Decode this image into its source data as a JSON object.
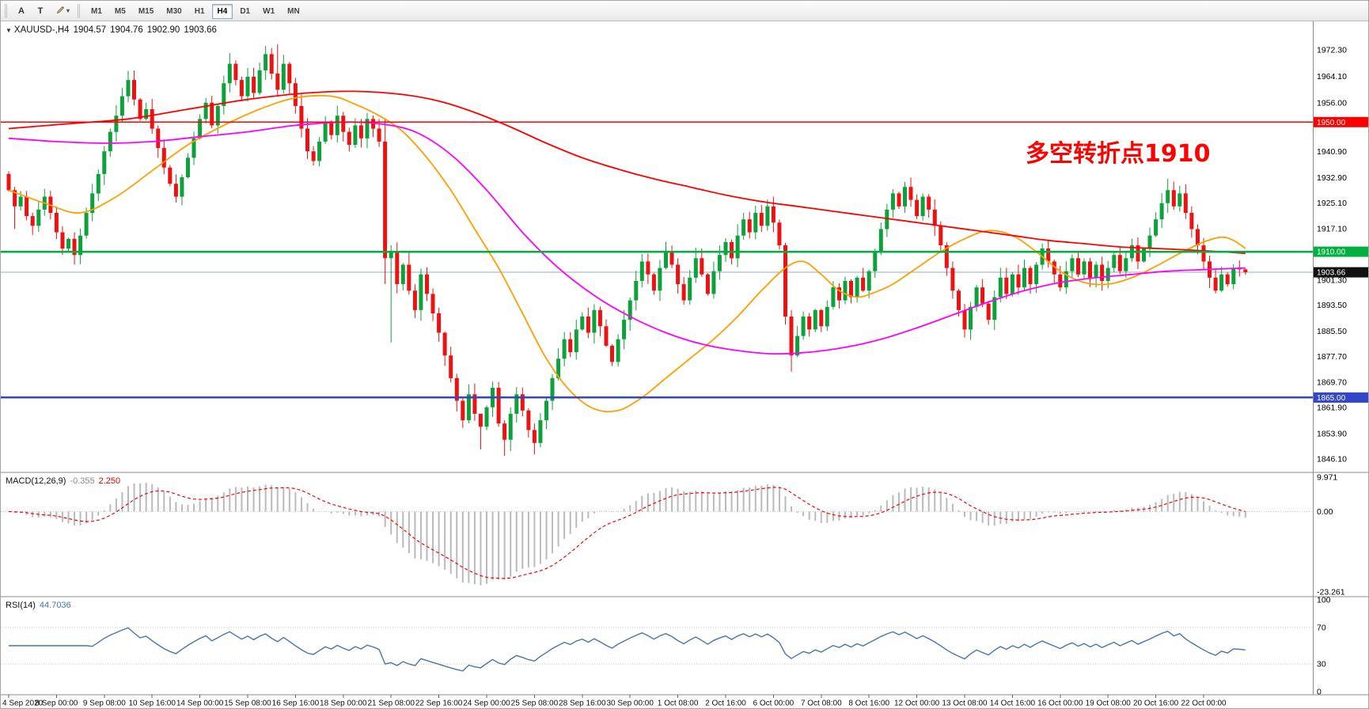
{
  "toolbar": {
    "tools": [
      {
        "label": "A"
      },
      {
        "label": "T"
      }
    ],
    "draw_caret": "▾",
    "timeframes": [
      {
        "label": "M1",
        "active": false
      },
      {
        "label": "M5",
        "active": false
      },
      {
        "label": "M15",
        "active": false
      },
      {
        "label": "M30",
        "active": false
      },
      {
        "label": "H1",
        "active": false
      },
      {
        "label": "H4",
        "active": true
      },
      {
        "label": "D1",
        "active": false
      },
      {
        "label": "W1",
        "active": false
      },
      {
        "label": "MN",
        "active": false
      }
    ]
  },
  "chart": {
    "symbol_line": {
      "arrow": "▼",
      "symbol": "XAUUSD-,H4",
      "open": "1904.57",
      "high": "1904.76",
      "low": "1902.90",
      "close": "1903.66"
    },
    "annotation": {
      "text": "多空转折点1910",
      "color": "#ff0000"
    },
    "price_range": {
      "min": 1841.9,
      "max": 1981.1
    },
    "y_ticks": [
      1972.3,
      1964.1,
      1956.0,
      1940.9,
      1932.9,
      1925.1,
      1917.1,
      1901.3,
      1893.5,
      1885.5,
      1877.7,
      1869.7,
      1861.9,
      1853.9,
      1846.1
    ],
    "hlines": [
      {
        "price": 1950.0,
        "label": "1950.00",
        "color": "#ff0000",
        "width": 1.6
      },
      {
        "price": 1910.0,
        "label": "1910.00",
        "color": "#00b140",
        "width": 2.6
      },
      {
        "price": 1865.0,
        "label": "1865.00",
        "color": "#3146c8",
        "width": 2.6
      }
    ],
    "price_line": {
      "price": 1903.66,
      "label": "1903.66",
      "line_color": "#9aa8bd",
      "badge_color": "#111111"
    },
    "colors": {
      "bull": "#0ca13a",
      "bear": "#ee1111"
    },
    "candles": {
      "first_open": 1934,
      "closes": [
        1929,
        1924,
        1927,
        1921,
        1918,
        1923,
        1927,
        1922,
        1916,
        1911,
        1914,
        1909,
        1915,
        1922,
        1928,
        1934,
        1941,
        1947,
        1952,
        1958,
        1963,
        1957,
        1951,
        1954,
        1948,
        1942,
        1936,
        1931,
        1927,
        1933,
        1939,
        1945,
        1951,
        1956,
        1949,
        1955,
        1962,
        1968,
        1963,
        1958,
        1964,
        1959,
        1966,
        1971,
        1965,
        1960,
        1968,
        1962,
        1955,
        1948,
        1941,
        1938,
        1944,
        1950,
        1946,
        1952,
        1947,
        1943,
        1949,
        1945,
        1951,
        1948,
        1944,
        1908,
        1910,
        1900,
        1906,
        1898,
        1892,
        1903,
        1897,
        1891,
        1885,
        1878,
        1871,
        1864,
        1858,
        1866,
        1860,
        1856,
        1862,
        1868,
        1857,
        1852,
        1860,
        1866,
        1861,
        1855,
        1851,
        1858,
        1864,
        1871,
        1877,
        1883,
        1879,
        1886,
        1890,
        1885,
        1892,
        1887,
        1881,
        1876,
        1883,
        1889,
        1895,
        1901,
        1907,
        1903,
        1898,
        1905,
        1910,
        1906,
        1900,
        1895,
        1902,
        1908,
        1903,
        1897,
        1904,
        1909,
        1913,
        1908,
        1915,
        1920,
        1916,
        1922,
        1918,
        1924,
        1919,
        1912,
        1890,
        1878,
        1884,
        1890,
        1886,
        1892,
        1887,
        1893,
        1899,
        1895,
        1901,
        1896,
        1902,
        1898,
        1904,
        1910,
        1917,
        1923,
        1928,
        1924,
        1930,
        1926,
        1921,
        1927,
        1923,
        1918,
        1912,
        1905,
        1898,
        1892,
        1886,
        1893,
        1899,
        1894,
        1889,
        1896,
        1902,
        1897,
        1903,
        1899,
        1905,
        1900,
        1906,
        1911,
        1907,
        1903,
        1899,
        1904,
        1908,
        1903,
        1907,
        1902,
        1906,
        1901,
        1905,
        1909,
        1904,
        1908,
        1912,
        1907,
        1911,
        1915,
        1920,
        1925,
        1929,
        1924,
        1928,
        1922,
        1917,
        1912,
        1907,
        1902,
        1898,
        1903,
        1900,
        1905,
        1904.57,
        1903.66
      ],
      "wick_overrides": {
        "1": [
          1930,
          1917
        ],
        "43": [
          1973.5,
          1963
        ],
        "45": [
          1974,
          1958
        ],
        "63": [
          1951,
          1900
        ],
        "64": [
          1912,
          1882
        ],
        "79": [
          1858,
          1849
        ],
        "83": [
          1858,
          1847
        ],
        "84": [
          1862,
          1848.5
        ],
        "88": [
          1857,
          1847.5
        ],
        "128": [
          1927,
          1916
        ],
        "131": [
          1892,
          1873
        ],
        "194": [
          1932.5,
          1922
        ],
        "207": [
          1904.76,
          1902.9
        ]
      }
    },
    "moving_averages": [
      {
        "name": "ma-fast",
        "color": "#ff9f00",
        "points": [
          [
            0,
            1929
          ],
          [
            6,
            1925
          ],
          [
            12,
            1922
          ],
          [
            18,
            1927
          ],
          [
            24,
            1935
          ],
          [
            30,
            1943
          ],
          [
            36,
            1949
          ],
          [
            42,
            1954
          ],
          [
            48,
            1957.5
          ],
          [
            54,
            1958
          ],
          [
            58,
            1955.5
          ],
          [
            62,
            1952
          ],
          [
            66,
            1947
          ],
          [
            70,
            1939
          ],
          [
            74,
            1929
          ],
          [
            78,
            1917
          ],
          [
            82,
            1905
          ],
          [
            86,
            1891
          ],
          [
            90,
            1877
          ],
          [
            94,
            1867
          ],
          [
            98,
            1861.5
          ],
          [
            102,
            1861
          ],
          [
            106,
            1865
          ],
          [
            110,
            1871
          ],
          [
            114,
            1877
          ],
          [
            118,
            1883
          ],
          [
            122,
            1890
          ],
          [
            126,
            1898
          ],
          [
            130,
            1905
          ],
          [
            133,
            1907
          ],
          [
            136,
            1903
          ],
          [
            139,
            1898
          ],
          [
            142,
            1896
          ],
          [
            145,
            1897.5
          ],
          [
            148,
            1900
          ],
          [
            152,
            1905
          ],
          [
            156,
            1910
          ],
          [
            160,
            1914
          ],
          [
            164,
            1916.5
          ],
          [
            168,
            1915
          ],
          [
            172,
            1910
          ],
          [
            176,
            1904
          ],
          [
            180,
            1900.5
          ],
          [
            184,
            1900
          ],
          [
            188,
            1902
          ],
          [
            192,
            1905.5
          ],
          [
            196,
            1909.5
          ],
          [
            200,
            1913
          ],
          [
            203,
            1914.5
          ],
          [
            205,
            1913.5
          ],
          [
            207,
            1911
          ]
        ]
      },
      {
        "name": "ma-mid",
        "color": "#ff00ff",
        "points": [
          [
            0,
            1945
          ],
          [
            8,
            1944
          ],
          [
            16,
            1943.5
          ],
          [
            24,
            1944
          ],
          [
            32,
            1945.5
          ],
          [
            40,
            1947
          ],
          [
            48,
            1949
          ],
          [
            56,
            1950
          ],
          [
            62,
            1949.5
          ],
          [
            68,
            1947
          ],
          [
            74,
            1940
          ],
          [
            80,
            1929
          ],
          [
            86,
            1916
          ],
          [
            92,
            1905
          ],
          [
            98,
            1896.5
          ],
          [
            104,
            1890
          ],
          [
            110,
            1885
          ],
          [
            116,
            1881.5
          ],
          [
            122,
            1879.5
          ],
          [
            128,
            1878.5
          ],
          [
            134,
            1879
          ],
          [
            140,
            1880.5
          ],
          [
            146,
            1883
          ],
          [
            152,
            1886.5
          ],
          [
            158,
            1890.5
          ],
          [
            164,
            1894.5
          ],
          [
            170,
            1898
          ],
          [
            176,
            1900.5
          ],
          [
            182,
            1902
          ],
          [
            188,
            1903
          ],
          [
            194,
            1904
          ],
          [
            200,
            1904.5
          ],
          [
            207,
            1905
          ]
        ]
      },
      {
        "name": "ma-slow",
        "color": "#ff0000",
        "points": [
          [
            0,
            1948
          ],
          [
            10,
            1949.5
          ],
          [
            20,
            1951
          ],
          [
            30,
            1954
          ],
          [
            40,
            1957
          ],
          [
            50,
            1959
          ],
          [
            58,
            1959.5
          ],
          [
            66,
            1958.5
          ],
          [
            72,
            1956.5
          ],
          [
            78,
            1953
          ],
          [
            84,
            1948.5
          ],
          [
            90,
            1943.5
          ],
          [
            96,
            1939
          ],
          [
            102,
            1935.5
          ],
          [
            108,
            1932.5
          ],
          [
            114,
            1930
          ],
          [
            120,
            1927.5
          ],
          [
            126,
            1925.5
          ],
          [
            132,
            1924
          ],
          [
            138,
            1922.5
          ],
          [
            144,
            1921
          ],
          [
            150,
            1919.5
          ],
          [
            156,
            1918
          ],
          [
            162,
            1916.5
          ],
          [
            168,
            1915
          ],
          [
            174,
            1913.5
          ],
          [
            180,
            1912.5
          ],
          [
            186,
            1911.5
          ],
          [
            192,
            1911
          ],
          [
            198,
            1910.5
          ],
          [
            203,
            1910
          ],
          [
            207,
            1909.5
          ]
        ]
      }
    ]
  },
  "macd": {
    "label": "MACD(12,26,9)",
    "value_main": "-0.355",
    "value_signal": "2.250",
    "params": {
      "fast": 12,
      "slow": 26,
      "signal": 9
    },
    "scale": {
      "max": 9.971,
      "min": -23.261
    },
    "ticks": [
      {
        "label": "9.971",
        "value": 9.971
      },
      {
        "label": "0.00",
        "value": 0
      },
      {
        "label": "-23.261",
        "value": -23.261
      }
    ],
    "colors": {
      "histogram": "#bababa",
      "signal": "#ff0000"
    }
  },
  "rsi": {
    "label": "RSI(14)",
    "value": "44.7036",
    "period": 14,
    "levels": [
      70,
      30
    ],
    "ticks": [
      {
        "label": "100",
        "value": 100
      },
      {
        "label": "70",
        "value": 70
      },
      {
        "label": "30",
        "value": 30
      },
      {
        "label": "0",
        "value": 0
      }
    ],
    "color": "#4575b4"
  },
  "time_axis": {
    "step": 8,
    "labels": [
      "4 Sep 2020",
      "8 Sep 00:00",
      "9 Sep 08:00",
      "10 Sep 16:00",
      "14 Sep 00:00",
      "15 Sep 08:00",
      "16 Sep 16:00",
      "18 Sep 00:00",
      "21 Sep 08:00",
      "22 Sep 16:00",
      "24 Sep 00:00",
      "25 Sep 08:00",
      "28 Sep 16:00",
      "30 Sep 00:00",
      "1 Oct 08:00",
      "2 Oct 16:00",
      "6 Oct 00:00",
      "7 Oct 08:00",
      "8 Oct 16:00",
      "12 Oct 00:00",
      "13 Oct 08:00",
      "14 Oct 16:00",
      "16 Oct 00:00",
      "19 Oct 08:00",
      "20 Oct 16:00",
      "22 Oct 00:00"
    ]
  }
}
